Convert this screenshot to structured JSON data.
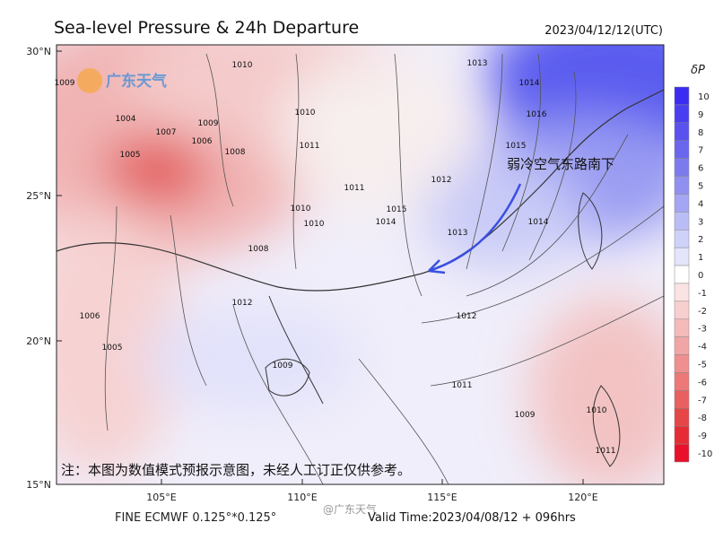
{
  "header": {
    "title": "Sea-level Pressure & 24h Departure",
    "time": "2023/04/12/12(UTC)"
  },
  "logo": "广东天气",
  "map": {
    "lat_labels": [
      "30°N",
      "25°N",
      "20°N",
      "15°N"
    ],
    "lon_labels": [
      "105°E",
      "110°E",
      "115°E",
      "120°E"
    ],
    "isobar_labels": [
      "1010",
      "1009",
      "1004",
      "1005",
      "1007",
      "1006",
      "1008",
      "1009",
      "1010",
      "1011",
      "1011",
      "1013",
      "1014",
      "1016",
      "1015",
      "1014",
      "1012",
      "1013",
      "1014",
      "1015",
      "1012",
      "1011",
      "1010",
      "1010",
      "1009",
      "1008",
      "1006",
      "1005",
      "1009",
      "1010",
      "1011",
      "1012"
    ],
    "annotation": "弱冷空气东路南下",
    "note": "注：本图为数值模式预报示意图，未经人工订正仅供参考。"
  },
  "colorbar": {
    "label": "δP",
    "ticks": [
      10,
      9,
      8,
      7,
      6,
      5,
      4,
      3,
      2,
      1,
      0,
      -1,
      -2,
      -3,
      -4,
      -5,
      -6,
      -7,
      -8,
      -9,
      -10
    ],
    "colors": [
      "#3b2cf2",
      "#4a3ff0",
      "#5a52ee",
      "#6b66ee",
      "#7c7bee",
      "#9090f0",
      "#a5a6f3",
      "#babdf5",
      "#cfd2f8",
      "#e3e5fb",
      "#ffffff",
      "#fbe3e3",
      "#f8cfcf",
      "#f5baba",
      "#f2a5a5",
      "#ef8f8f",
      "#ec7878",
      "#e96060",
      "#e64646",
      "#e52c34",
      "#e8102a"
    ]
  },
  "footer": {
    "model": "FINE ECMWF 0.125°*0.125°",
    "watermark": "@广东天气",
    "valid": "Valid Time:2023/04/08/12 + 096hrs"
  }
}
